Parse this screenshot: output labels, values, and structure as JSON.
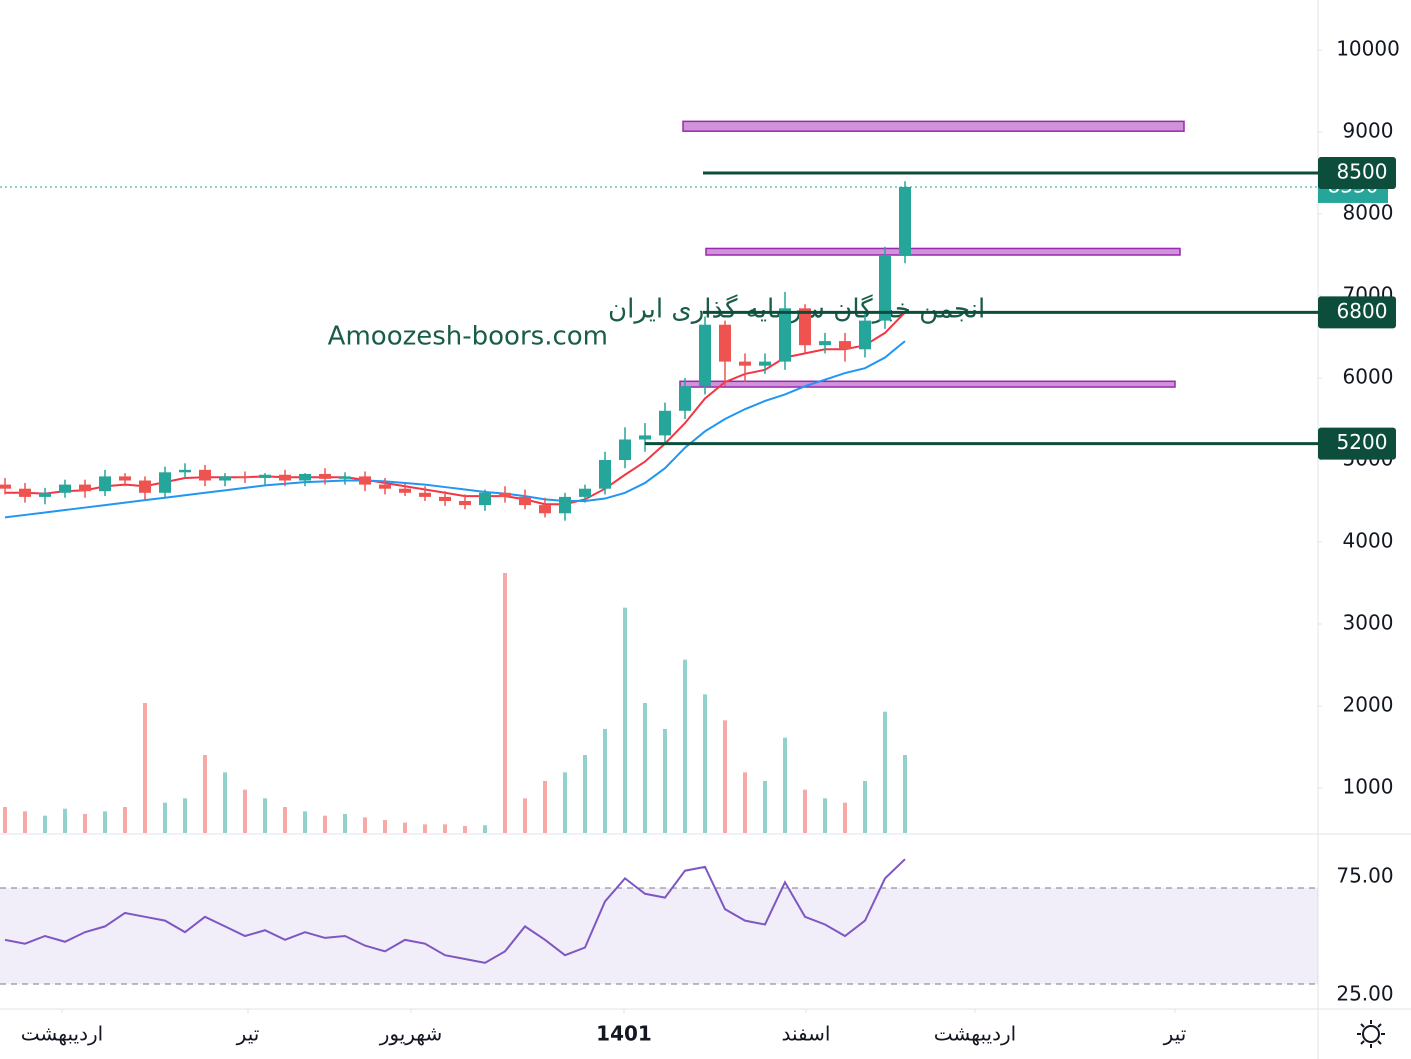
{
  "chart_data": {
    "type": "candlestick",
    "watermark": [
      "انجمن خبرگان سرمایه گذاری ایران",
      "Amoozesh-boors.com"
    ],
    "xlim": [
      -0.25,
      65.65
    ],
    "xticks": [
      {
        "value": 2.85,
        "label": "اردیبهشت"
      },
      {
        "value": 12.15,
        "label": "تیر"
      },
      {
        "value": 20.3,
        "label": "شهریور"
      },
      {
        "value": 30.95,
        "label": "1401"
      },
      {
        "value": 40.05,
        "label": "اسفند"
      },
      {
        "value": 48.5,
        "label": "اردیبهشت"
      },
      {
        "value": 58.5,
        "label": "تیر"
      }
    ],
    "ylim": [
      451,
      10610
    ],
    "yticks": [
      1000,
      2000,
      3000,
      4000,
      5000,
      6000,
      7000,
      8000,
      9000,
      10000
    ],
    "up_color": "#26a69a",
    "down_color": "#ef5350",
    "open": [
      4700,
      4650,
      4550,
      4600,
      4700,
      4620,
      4800,
      4750,
      4600,
      4850,
      4880,
      4750,
      4800,
      4780,
      4820,
      4750,
      4830,
      4770,
      4800,
      4700,
      4650,
      4600,
      4550,
      4500,
      4450,
      4600,
      4550,
      4450,
      4350,
      4550,
      4650,
      5000,
      5250,
      5300,
      5600,
      5900,
      6650,
      6200,
      6150,
      6200,
      6850,
      6400,
      6450,
      6350,
      6700,
      7500
    ],
    "high": [
      4780,
      4720,
      4660,
      4760,
      4760,
      4880,
      4840,
      4800,
      4920,
      4960,
      4940,
      4840,
      4860,
      4840,
      4880,
      4840,
      4900,
      4850,
      4860,
      4780,
      4720,
      4680,
      4620,
      4580,
      4640,
      4680,
      4640,
      4540,
      4600,
      4700,
      5100,
      5400,
      5450,
      5700,
      6000,
      6750,
      6700,
      6300,
      6300,
      7050,
      6900,
      6550,
      6550,
      6800,
      7600,
      8400
    ],
    "low": [
      4580,
      4480,
      4460,
      4540,
      4540,
      4560,
      4680,
      4520,
      4540,
      4780,
      4680,
      4680,
      4720,
      4700,
      4680,
      4680,
      4700,
      4700,
      4620,
      4580,
      4560,
      4500,
      4440,
      4400,
      4380,
      4480,
      4400,
      4300,
      4260,
      4480,
      4580,
      4900,
      5100,
      5200,
      5500,
      5800,
      5900,
      5950,
      6050,
      6100,
      6300,
      6300,
      6200,
      6250,
      6600,
      7400
    ],
    "close": [
      4650,
      4550,
      4600,
      4700,
      4620,
      4800,
      4750,
      4600,
      4850,
      4880,
      4750,
      4800,
      4780,
      4820,
      4750,
      4830,
      4770,
      4800,
      4700,
      4650,
      4600,
      4550,
      4500,
      4450,
      4600,
      4550,
      4450,
      4350,
      4550,
      4650,
      5000,
      5250,
      5300,
      5600,
      5900,
      6650,
      6200,
      6150,
      6200,
      6850,
      6400,
      6450,
      6350,
      6700,
      7500,
      8330
    ],
    "moving_averages": [
      {
        "color": "#f23645",
        "values": [
          4600,
          4600,
          4590,
          4620,
          4630,
          4680,
          4700,
          4680,
          4730,
          4780,
          4790,
          4790,
          4790,
          4800,
          4790,
          4790,
          4790,
          4790,
          4760,
          4720,
          4680,
          4640,
          4600,
          4560,
          4560,
          4560,
          4520,
          4460,
          4460,
          4520,
          4650,
          4820,
          4980,
          5200,
          5450,
          5750,
          5950,
          6050,
          6100,
          6250,
          6300,
          6350,
          6350,
          6400,
          6550,
          6800
        ]
      },
      {
        "color": "#2196f3",
        "values": [
          4300,
          4330,
          4360,
          4390,
          4420,
          4450,
          4480,
          4510,
          4540,
          4570,
          4600,
          4630,
          4660,
          4690,
          4710,
          4730,
          4740,
          4750,
          4750,
          4740,
          4720,
          4700,
          4670,
          4640,
          4610,
          4590,
          4560,
          4520,
          4500,
          4500,
          4530,
          4600,
          4720,
          4900,
          5150,
          5350,
          5500,
          5620,
          5720,
          5800,
          5900,
          5980,
          6060,
          6120,
          6250,
          6450
        ]
      }
    ],
    "volume": [
      300,
      250,
      200,
      280,
      220,
      250,
      300,
      1500,
      350,
      400,
      900,
      700,
      500,
      400,
      300,
      250,
      200,
      220,
      180,
      150,
      120,
      100,
      100,
      80,
      90,
      3000,
      400,
      600,
      700,
      900,
      1200,
      2600,
      1500,
      1200,
      2000,
      1600,
      1300,
      700,
      600,
      1100,
      500,
      400,
      350,
      600,
      1400,
      900
    ],
    "volume_lim": [
      0,
      3000
    ],
    "last_price": 8330,
    "last_price_color": "#26a69a",
    "levels": [
      {
        "value": 8500,
        "from": 34.9
      },
      {
        "value": 6800,
        "from": 34.9
      },
      {
        "value": 5200,
        "from": 32
      }
    ],
    "level_color": "#0d4d3b",
    "zones": [
      {
        "low": 9010,
        "high": 9130,
        "from": 33.9,
        "to": 58.95
      },
      {
        "low": 7500,
        "high": 7580,
        "from": 35.05,
        "to": 58.75
      },
      {
        "low": 5890,
        "high": 5960,
        "from": 33.75,
        "to": 58.5
      }
    ],
    "zone_color": "#ce93d8",
    "rsi": {
      "color": "#7e57c2",
      "ylim": [
        12.5,
        102.6
      ],
      "yticks": [
        {
          "value": 75,
          "label": "75.00"
        },
        {
          "value": 25,
          "label": "25.00"
        }
      ],
      "values": [
        48,
        46,
        50,
        47,
        52,
        55,
        62,
        60,
        58,
        52,
        60,
        55,
        50,
        53,
        48,
        52,
        49,
        50,
        45,
        42,
        48,
        46,
        40,
        38,
        36,
        42,
        55,
        48,
        40,
        44,
        68,
        80,
        72,
        70,
        84,
        86,
        64,
        58,
        56,
        78,
        60,
        56,
        50,
        58,
        80,
        90
      ]
    }
  }
}
